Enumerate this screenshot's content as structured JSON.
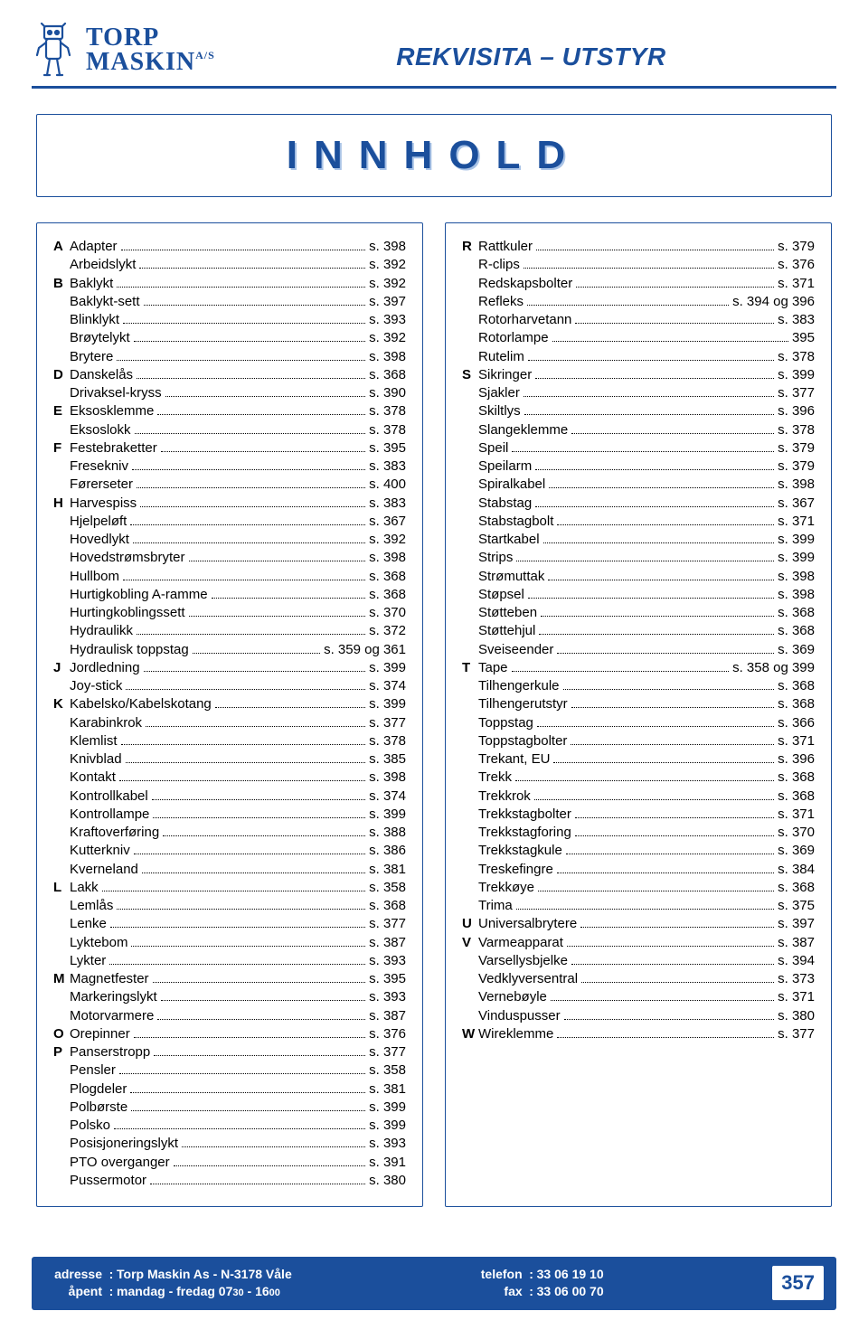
{
  "brand": {
    "line1": "TORP",
    "line2": "MASKIN",
    "suffix": "A/S"
  },
  "page_title": "REKVISITA – UTSTYR",
  "toc_caption": "INNHOLD",
  "colors": {
    "brand_blue": "#1b4f9c",
    "shadow_blue": "#a9c3e6",
    "background": "#ffffff",
    "text": "#000000"
  },
  "left_entries": [
    {
      "letter": "A",
      "label": "Adapter",
      "page": "s. 398"
    },
    {
      "letter": "",
      "label": "Arbeidslykt",
      "page": "s. 392"
    },
    {
      "letter": "B",
      "label": "Baklykt",
      "page": "s. 392"
    },
    {
      "letter": "",
      "label": "Baklykt-sett",
      "page": "s. 397"
    },
    {
      "letter": "",
      "label": "Blinklykt",
      "page": "s. 393"
    },
    {
      "letter": "",
      "label": "Brøytelykt",
      "page": "s. 392"
    },
    {
      "letter": "",
      "label": "Brytere",
      "page": "s. 398"
    },
    {
      "letter": "D",
      "label": "Danskelås",
      "page": "s. 368"
    },
    {
      "letter": "",
      "label": "Drivaksel-kryss",
      "page": "s. 390"
    },
    {
      "letter": "E",
      "label": "Eksosklemme",
      "page": "s. 378"
    },
    {
      "letter": "",
      "label": "Eksoslokk",
      "page": "s. 378"
    },
    {
      "letter": "F",
      "label": "Festebraketter",
      "page": "s. 395"
    },
    {
      "letter": "",
      "label": "Fresekniv",
      "page": "s. 383"
    },
    {
      "letter": "",
      "label": "Førerseter",
      "page": "s. 400"
    },
    {
      "letter": "H",
      "label": "Harvespiss",
      "page": "s. 383"
    },
    {
      "letter": "",
      "label": "Hjelpeløft",
      "page": "s. 367"
    },
    {
      "letter": "",
      "label": "Hovedlykt",
      "page": "s. 392"
    },
    {
      "letter": "",
      "label": "Hovedstrømsbryter",
      "page": "s. 398"
    },
    {
      "letter": "",
      "label": "Hullbom",
      "page": "s. 368"
    },
    {
      "letter": "",
      "label": "Hurtigkobling A-ramme",
      "page": "s. 368"
    },
    {
      "letter": "",
      "label": "Hurtingkoblingssett",
      "page": "s. 370"
    },
    {
      "letter": "",
      "label": "Hydraulikk",
      "page": "s. 372"
    },
    {
      "letter": "",
      "label": "Hydraulisk toppstag",
      "page": "s. 359 og 361"
    },
    {
      "letter": "J",
      "label": "Jordledning",
      "page": "s. 399"
    },
    {
      "letter": "",
      "label": "Joy-stick",
      "page": "s. 374"
    },
    {
      "letter": "K",
      "label": "Kabelsko/Kabelskotang",
      "page": "s. 399"
    },
    {
      "letter": "",
      "label": "Karabinkrok",
      "page": "s. 377"
    },
    {
      "letter": "",
      "label": "Klemlist",
      "page": "s. 378"
    },
    {
      "letter": "",
      "label": "Knivblad",
      "page": "s. 385"
    },
    {
      "letter": "",
      "label": "Kontakt",
      "page": "s. 398"
    },
    {
      "letter": "",
      "label": "Kontrollkabel",
      "page": "s. 374"
    },
    {
      "letter": "",
      "label": "Kontrollampe",
      "page": "s. 399"
    },
    {
      "letter": "",
      "label": "Kraftoverføring",
      "page": "s. 388"
    },
    {
      "letter": "",
      "label": "Kutterkniv",
      "page": "s. 386"
    },
    {
      "letter": "",
      "label": "Kverneland",
      "page": "s. 381"
    },
    {
      "letter": "L",
      "label": "Lakk",
      "page": "s. 358"
    },
    {
      "letter": "",
      "label": "Lemlås",
      "page": "s. 368"
    },
    {
      "letter": "",
      "label": "Lenke",
      "page": "s. 377"
    },
    {
      "letter": "",
      "label": "Lyktebom",
      "page": "s. 387"
    },
    {
      "letter": "",
      "label": "Lykter",
      "page": "s. 393"
    },
    {
      "letter": "M",
      "label": "Magnetfester",
      "page": "s. 395"
    },
    {
      "letter": "",
      "label": "Markeringslykt",
      "page": "s. 393"
    },
    {
      "letter": "",
      "label": "Motorvarmere",
      "page": "s. 387"
    },
    {
      "letter": "O",
      "label": "Orepinner",
      "page": "s. 376"
    },
    {
      "letter": "P",
      "label": "Panserstropp",
      "page": "s. 377"
    },
    {
      "letter": "",
      "label": "Pensler",
      "page": "s. 358"
    },
    {
      "letter": "",
      "label": "Plogdeler",
      "page": "s. 381"
    },
    {
      "letter": "",
      "label": "Polbørste",
      "page": "s. 399"
    },
    {
      "letter": "",
      "label": "Polsko",
      "page": "s. 399"
    },
    {
      "letter": "",
      "label": "Posisjoneringslykt",
      "page": "s. 393"
    },
    {
      "letter": "",
      "label": "PTO overganger",
      "page": "s. 391"
    },
    {
      "letter": "",
      "label": "Pussermotor",
      "page": "s. 380"
    }
  ],
  "right_entries": [
    {
      "letter": "R",
      "label": "Rattkuler",
      "page": "s. 379"
    },
    {
      "letter": "",
      "label": "R-clips",
      "page": "s. 376"
    },
    {
      "letter": "",
      "label": "Redskapsbolter",
      "page": "s. 371"
    },
    {
      "letter": "",
      "label": "Refleks",
      "page": "s. 394 og 396"
    },
    {
      "letter": "",
      "label": "Rotorharvetann",
      "page": "s. 383"
    },
    {
      "letter": "",
      "label": "Rotorlampe",
      "page": "395"
    },
    {
      "letter": "",
      "label": "Rutelim",
      "page": "s. 378"
    },
    {
      "letter": "S",
      "label": "Sikringer",
      "page": "s. 399"
    },
    {
      "letter": "",
      "label": "Sjakler",
      "page": "s. 377"
    },
    {
      "letter": "",
      "label": "Skiltlys",
      "page": "s. 396"
    },
    {
      "letter": "",
      "label": "Slangeklemme",
      "page": "s. 378"
    },
    {
      "letter": "",
      "label": "Speil",
      "page": "s. 379"
    },
    {
      "letter": "",
      "label": "Speilarm",
      "page": "s. 379"
    },
    {
      "letter": "",
      "label": "Spiralkabel",
      "page": "s. 398"
    },
    {
      "letter": "",
      "label": "Stabstag",
      "page": "s. 367"
    },
    {
      "letter": "",
      "label": "Stabstagbolt",
      "page": "s. 371"
    },
    {
      "letter": "",
      "label": "Startkabel",
      "page": "s. 399"
    },
    {
      "letter": "",
      "label": "Strips",
      "page": "s. 399"
    },
    {
      "letter": "",
      "label": "Strømuttak",
      "page": "s. 398"
    },
    {
      "letter": "",
      "label": "Støpsel",
      "page": "s. 398"
    },
    {
      "letter": "",
      "label": "Støtteben",
      "page": "s. 368"
    },
    {
      "letter": "",
      "label": "Støttehjul",
      "page": "s. 368"
    },
    {
      "letter": "",
      "label": "Sveiseender",
      "page": "s. 369"
    },
    {
      "letter": "T",
      "label": "Tape",
      "page": "s. 358 og 399"
    },
    {
      "letter": "",
      "label": "Tilhengerkule",
      "page": "s. 368"
    },
    {
      "letter": "",
      "label": "Tilhengerutstyr",
      "page": "s. 368"
    },
    {
      "letter": "",
      "label": "Toppstag",
      "page": "s. 366"
    },
    {
      "letter": "",
      "label": "Toppstagbolter",
      "page": "s. 371"
    },
    {
      "letter": "",
      "label": "Trekant, EU",
      "page": "s. 396"
    },
    {
      "letter": "",
      "label": "Trekk",
      "page": "s. 368"
    },
    {
      "letter": "",
      "label": "Trekkrok",
      "page": "s. 368"
    },
    {
      "letter": "",
      "label": "Trekkstagbolter",
      "page": "s. 371"
    },
    {
      "letter": "",
      "label": "Trekkstagforing",
      "page": "s. 370"
    },
    {
      "letter": "",
      "label": "Trekkstagkule",
      "page": "s. 369"
    },
    {
      "letter": "",
      "label": "Treskefingre",
      "page": "s. 384"
    },
    {
      "letter": "",
      "label": "Trekkøye",
      "page": "s. 368"
    },
    {
      "letter": "",
      "label": "Trima",
      "page": "s. 375"
    },
    {
      "letter": "U",
      "label": "Universalbrytere",
      "page": "s. 397"
    },
    {
      "letter": "V",
      "label": "Varmeapparat",
      "page": "s. 387"
    },
    {
      "letter": "",
      "label": "Varsellysbjelke",
      "page": "s. 394"
    },
    {
      "letter": "",
      "label": "Vedklyversentral",
      "page": "s. 373"
    },
    {
      "letter": "",
      "label": "Vernebøyle",
      "page": "s. 371"
    },
    {
      "letter": "",
      "label": "Vinduspusser",
      "page": "s. 380"
    },
    {
      "letter": "W",
      "label": "Wireklemme",
      "page": "s. 377"
    }
  ],
  "footer": {
    "left": {
      "l1_key": "adresse",
      "l1_val": "Torp Maskin As - N-3178 Våle",
      "l2_key": "åpent",
      "l2_val_a": "mandag - fredag  07",
      "l2_val_b": "30",
      "l2_val_c": " - 16",
      "l2_val_d": "00"
    },
    "right": {
      "l1_key": "telefon",
      "l1_val": "33 06 19 10",
      "l2_key": "fax",
      "l2_val": "33 06 00 70"
    },
    "page_number": "357"
  }
}
